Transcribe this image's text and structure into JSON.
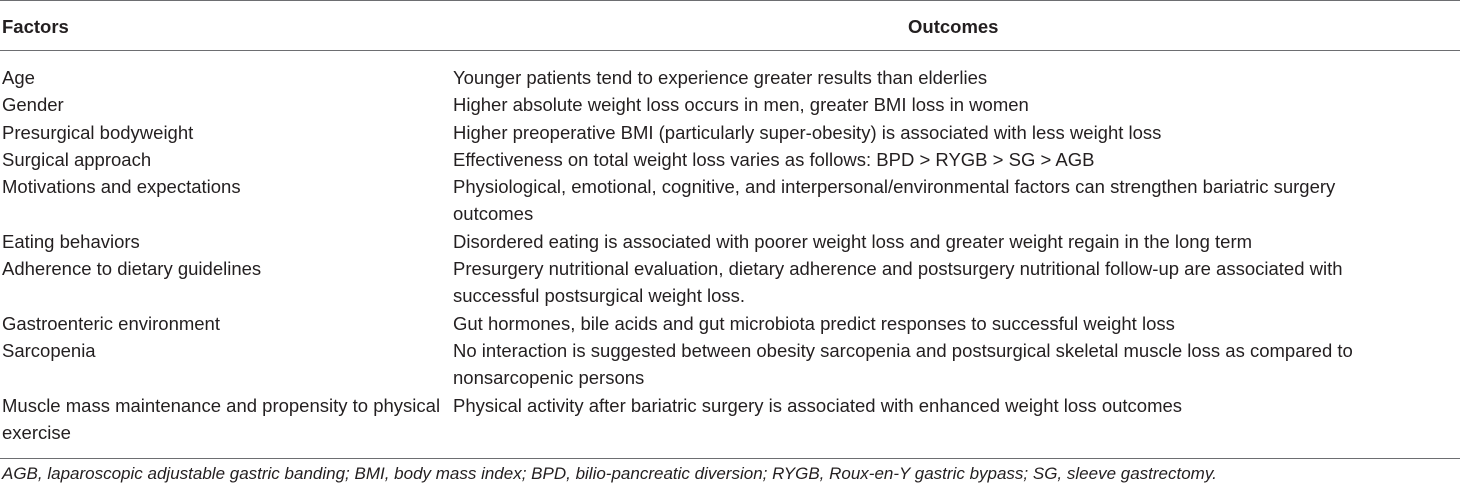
{
  "table": {
    "headers": {
      "factors": "Factors",
      "outcomes": "Outcomes"
    },
    "rows": [
      {
        "factor": "Age",
        "outcome": "Younger patients tend to experience greater results than elderlies"
      },
      {
        "factor": "Gender",
        "outcome": "Higher absolute weight loss occurs in men, greater BMI loss in women"
      },
      {
        "factor": "Presurgical bodyweight",
        "outcome": "Higher preoperative BMI (particularly super-obesity) is associated with less weight loss"
      },
      {
        "factor": "Surgical approach",
        "outcome": "Effectiveness on total weight loss varies as follows: BPD > RYGB > SG > AGB"
      },
      {
        "factor": "Motivations and expectations",
        "outcome": "Physiological, emotional, cognitive, and interpersonal/environmental factors can strengthen bariatric surgery outcomes"
      },
      {
        "factor": "Eating behaviors",
        "outcome": "Disordered eating is associated with poorer weight loss and greater weight regain in the long term"
      },
      {
        "factor": "Adherence to dietary guidelines",
        "outcome": "Presurgery nutritional evaluation, dietary adherence and postsurgery nutritional follow-up are associated with successful postsurgical weight loss."
      },
      {
        "factor": "Gastroenteric environment",
        "outcome": "Gut hormones, bile acids and gut microbiota predict responses to successful weight loss"
      },
      {
        "factor": "Sarcopenia",
        "outcome": "No interaction is suggested between obesity sarcopenia and postsurgical skeletal muscle loss as compared to nonsarcopenic persons"
      },
      {
        "factor": "Muscle mass maintenance and propensity to physical exercise",
        "outcome": "Physical activity after bariatric surgery is associated with enhanced weight loss outcomes"
      }
    ],
    "footnote": "AGB, laparoscopic adjustable gastric banding; BMI, body mass index; BPD, bilio-pancreatic diversion; RYGB, Roux-en-Y gastric bypass; SG, sleeve gastrectomy."
  }
}
